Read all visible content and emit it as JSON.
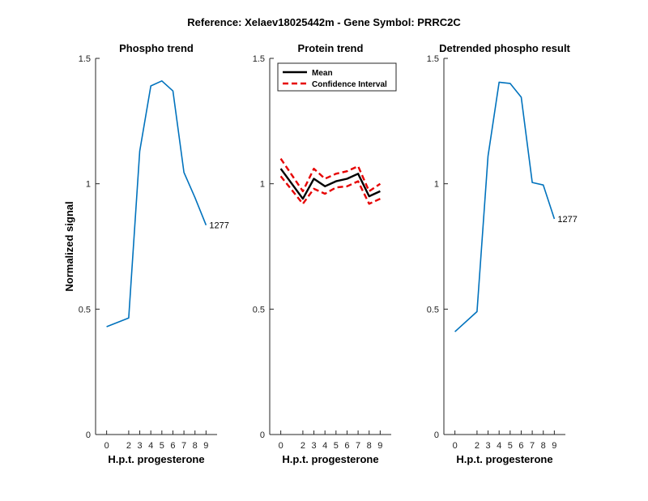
{
  "figure_title": "Reference:  Xelaev18025442m - Gene Symbol:  PRRC2C",
  "colors": {
    "series_blue": "#0072BD",
    "mean": "#000000",
    "ci": "#E60000",
    "axis": "#262626"
  },
  "chart_data": [
    {
      "type": "line",
      "title": "Phospho trend",
      "xlabel": "H.p.t. progesterone",
      "ylabel": "Normalized signal",
      "x": [
        0,
        2,
        3,
        4,
        5,
        6,
        7,
        8,
        9
      ],
      "xticks": [
        "0",
        "2",
        "3",
        "4",
        "5",
        "6",
        "7",
        "8",
        "9"
      ],
      "ylim": [
        0,
        1.5
      ],
      "yticks": [
        "0",
        "0.5",
        "1",
        "1.5"
      ],
      "grid": false,
      "series": [
        {
          "values": [
            0.43,
            0.465,
            1.13,
            1.39,
            1.41,
            1.37,
            1.045,
            0.945,
            0.835
          ]
        }
      ],
      "annotation": "1277"
    },
    {
      "type": "line",
      "title": "Protein trend",
      "xlabel": "H.p.t. progesterone",
      "ylabel": "",
      "x": [
        0,
        2,
        3,
        4,
        5,
        6,
        7,
        8,
        9
      ],
      "xticks": [
        "0",
        "2",
        "3",
        "4",
        "5",
        "6",
        "7",
        "8",
        "9"
      ],
      "ylim": [
        0,
        1.5
      ],
      "yticks": [
        "0",
        "0.5",
        "1",
        "1.5"
      ],
      "grid": false,
      "legend_position": "top-left",
      "series": [
        {
          "name": "Mean",
          "values": [
            1.06,
            0.94,
            1.02,
            0.99,
            1.01,
            1.02,
            1.04,
            0.95,
            0.97
          ]
        },
        {
          "name": "Confidence Interval",
          "values": [
            1.1,
            0.97,
            1.06,
            1.02,
            1.04,
            1.05,
            1.07,
            0.97,
            1.0
          ]
        },
        {
          "values": [
            1.03,
            0.92,
            0.98,
            0.96,
            0.985,
            0.99,
            1.01,
            0.92,
            0.94
          ]
        }
      ]
    },
    {
      "type": "line",
      "title": "Detrended phospho result",
      "xlabel": "H.p.t. progesterone",
      "ylabel": "",
      "x": [
        0,
        2,
        3,
        4,
        5,
        6,
        7,
        8,
        9
      ],
      "xticks": [
        "0",
        "2",
        "3",
        "4",
        "5",
        "6",
        "7",
        "8",
        "9"
      ],
      "ylim": [
        0,
        1.5
      ],
      "yticks": [
        "0",
        "0.5",
        "1",
        "1.5"
      ],
      "grid": false,
      "series": [
        {
          "values": [
            0.41,
            0.49,
            1.11,
            1.405,
            1.4,
            1.345,
            1.005,
            0.995,
            0.86
          ]
        }
      ],
      "annotation": "1277"
    }
  ]
}
